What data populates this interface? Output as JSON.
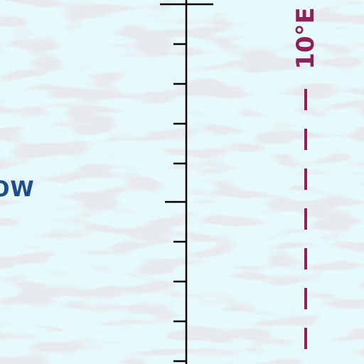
{
  "map": {
    "place_label": "OW",
    "meridian_label": "10°E"
  },
  "colors": {
    "sea_ice": "#e6f9fb",
    "ice_texture": "#cfd2d6",
    "place_label": "#1d4f8c",
    "meridian": "#8b2358",
    "scale_bar": "#000000"
  }
}
